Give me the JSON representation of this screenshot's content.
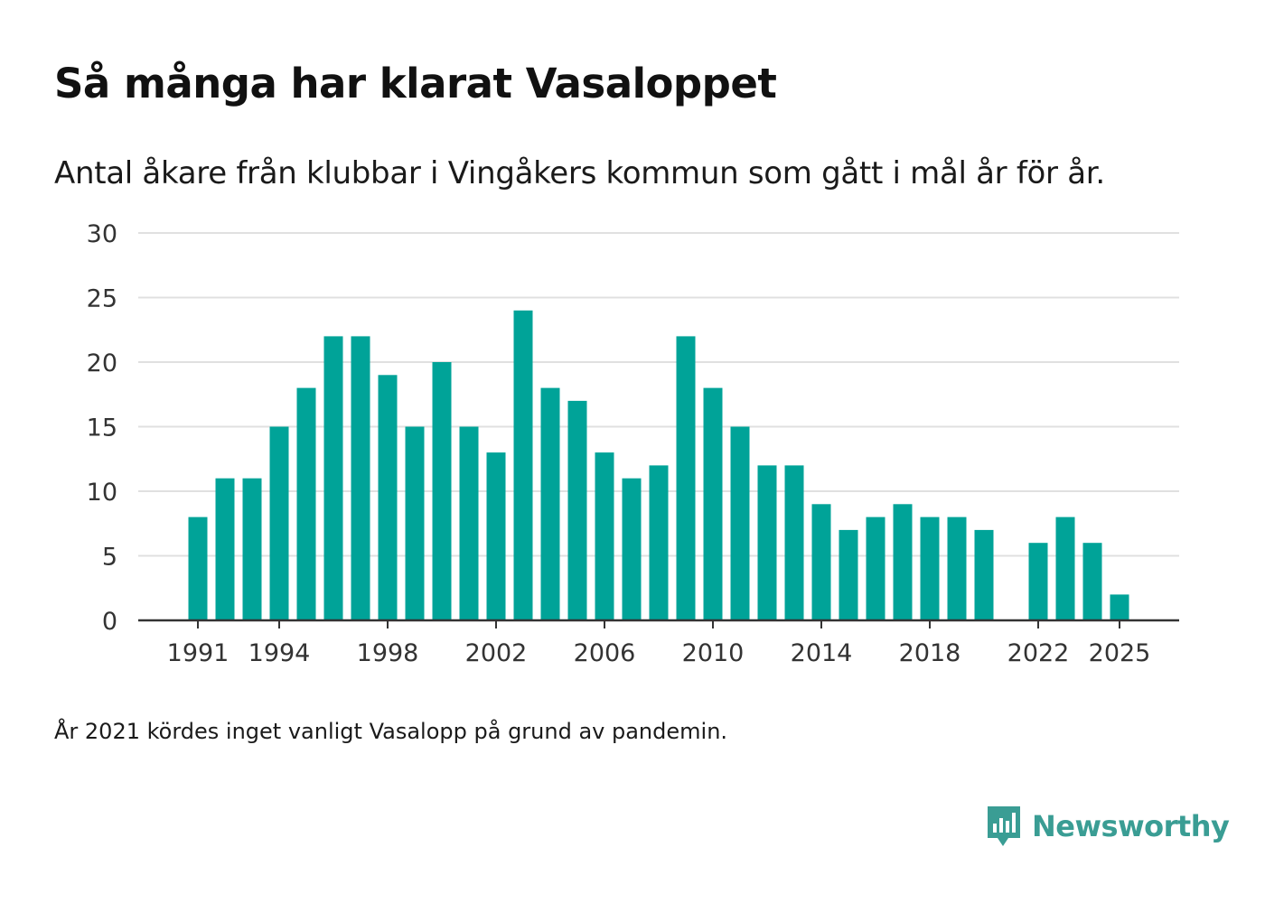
{
  "colors": {
    "bar": "#00a398",
    "grid": "#e0e0e0",
    "axis": "#333333",
    "brand": "#3a9d94"
  },
  "chart_data": {
    "type": "bar",
    "title": "Så många har klarat Vasaloppet",
    "subtitle": "Antal åkare från klubbar i Vingåkers kommun som gått i mål år för år.",
    "xlabel": "",
    "ylabel": "",
    "ylim": [
      0,
      30
    ],
    "yticks": [
      0,
      5,
      10,
      15,
      20,
      25,
      30
    ],
    "xticks": [
      1991,
      1994,
      1998,
      2002,
      2006,
      2010,
      2014,
      2018,
      2022,
      2025
    ],
    "grid": true,
    "categories": [
      1991,
      1992,
      1993,
      1994,
      1995,
      1996,
      1997,
      1998,
      1999,
      2000,
      2001,
      2002,
      2003,
      2004,
      2005,
      2006,
      2007,
      2008,
      2009,
      2010,
      2011,
      2012,
      2013,
      2014,
      2015,
      2016,
      2017,
      2018,
      2019,
      2020,
      2021,
      2022,
      2023,
      2024,
      2025
    ],
    "values": [
      8,
      11,
      11,
      15,
      18,
      22,
      22,
      19,
      15,
      20,
      15,
      13,
      24,
      18,
      17,
      13,
      11,
      12,
      22,
      18,
      15,
      12,
      12,
      9,
      7,
      8,
      9,
      8,
      8,
      7,
      null,
      6,
      8,
      6,
      2
    ]
  },
  "footnote": "År 2021 kördes inget vanligt Vasalopp på grund av pandemin.",
  "logo": {
    "text": "Newsworthy",
    "icon": "newsworthy-logo-icon"
  }
}
